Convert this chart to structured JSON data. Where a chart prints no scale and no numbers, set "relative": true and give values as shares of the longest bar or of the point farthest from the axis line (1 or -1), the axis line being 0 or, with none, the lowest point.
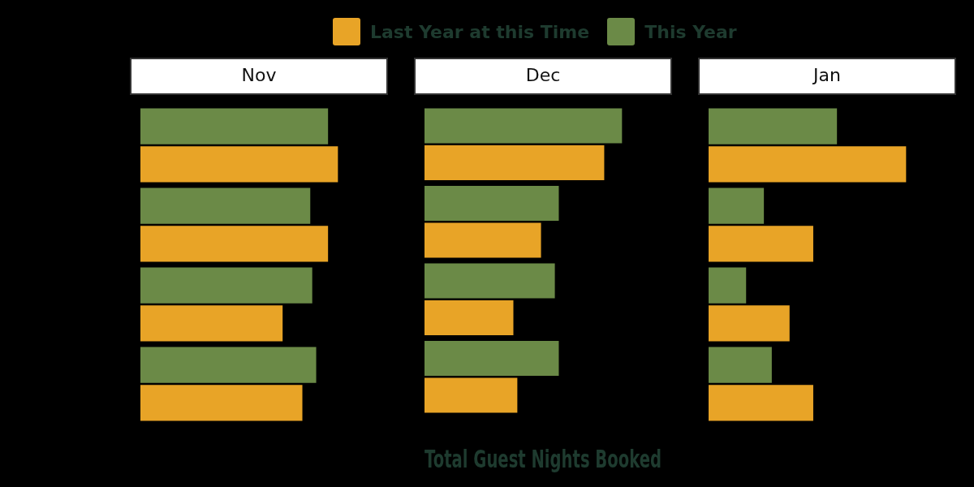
{
  "chart_data": [
    {
      "type": "bar",
      "orientation": "horizontal",
      "relative": true,
      "title": "Nov",
      "categories": [
        null,
        null,
        null,
        null
      ],
      "series": [
        {
          "color": "#6b8a47",
          "values": [
            0.95,
            0.86,
            0.87,
            0.89
          ]
        },
        {
          "color": "#e8a427",
          "values": [
            1,
            0.95,
            0.72,
            0.82
          ]
        }
      ]
    },
    {
      "type": "bar",
      "orientation": "horizontal",
      "relative": true,
      "title": "Dec",
      "xlabel": "Total Guest Nights Booked",
      "legend": "top",
      "categories": [
        null,
        null,
        null,
        null
      ],
      "series": [
        {
          "name": "This Year",
          "color": "#6b8a47",
          "values": [
            1,
            0.68,
            0.66,
            0.68
          ]
        },
        {
          "name": "Last Year at this Time",
          "color": "#e8a427",
          "values": [
            0.91,
            0.59,
            0.45,
            0.47
          ]
        }
      ]
    },
    {
      "type": "bar",
      "orientation": "horizontal",
      "relative": true,
      "title": "Jan",
      "categories": [
        null,
        null,
        null,
        null
      ],
      "series": [
        {
          "color": "#6b8a47",
          "values": [
            0.65,
            0.28,
            0.19,
            0.32
          ]
        },
        {
          "color": "#e8a427",
          "values": [
            1,
            0.53,
            0.41,
            0.53
          ]
        }
      ]
    }
  ]
}
